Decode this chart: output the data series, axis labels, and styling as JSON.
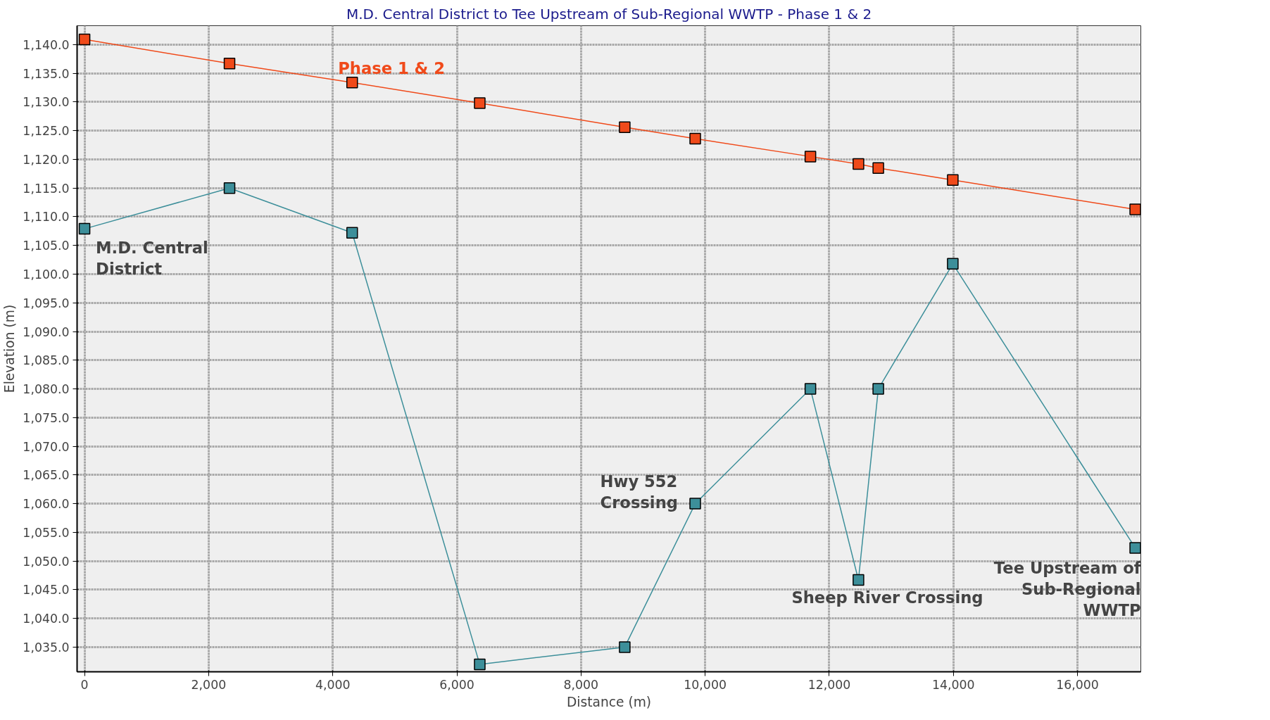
{
  "chart_data": {
    "type": "line",
    "title": "M.D. Central District to Tee Upstream of Sub-Regional WWTP - Phase 1 & 2",
    "xlabel": "Distance (m)",
    "ylabel": "Elevation (m)",
    "x": [
      0,
      2336,
      4312,
      6368,
      8704,
      9840,
      11696,
      12470,
      12790,
      13990,
      16930
    ],
    "series": [
      {
        "name": "Phase 1 & 2",
        "color": "#f04a1a",
        "values": [
          1140.9,
          1136.7,
          1133.4,
          1129.8,
          1125.6,
          1123.6,
          1120.5,
          1119.2,
          1118.5,
          1116.4,
          1111.3
        ]
      },
      {
        "color": "#3d8f9a",
        "values": [
          1107.9,
          1115.0,
          1107.2,
          1032.0,
          1035.0,
          1060.0,
          1080.0,
          1046.7,
          1080.0,
          1101.8,
          1052.3
        ]
      }
    ],
    "xlim": [
      -120,
      17020
    ],
    "ylim": [
      1030.7,
      1143.3
    ],
    "xticks": [
      0,
      {
        "value": 2000,
        "label": "2,000"
      },
      {
        "value": 4000,
        "label": "4,000"
      },
      {
        "value": 6000,
        "label": "6,000"
      },
      {
        "value": 8000,
        "label": "8,000"
      },
      {
        "value": 10000,
        "label": "10,000"
      },
      {
        "value": 12000,
        "label": "12,000"
      },
      {
        "value": 14000,
        "label": "14,000"
      },
      {
        "value": 16000,
        "label": "16,000"
      }
    ],
    "yticks": [
      {
        "value": 1035,
        "label": "1,035.0"
      },
      {
        "value": 1040,
        "label": "1,040.0"
      },
      {
        "value": 1045,
        "label": "1,045.0"
      },
      {
        "value": 1050,
        "label": "1,050.0"
      },
      {
        "value": 1055,
        "label": "1,055.0"
      },
      {
        "value": 1060,
        "label": "1,060.0"
      },
      {
        "value": 1065,
        "label": "1,065.0"
      },
      {
        "value": 1070,
        "label": "1,070.0"
      },
      {
        "value": 1075,
        "label": "1,075.0"
      },
      {
        "value": 1080,
        "label": "1,080.0"
      },
      {
        "value": 1085,
        "label": "1,085.0"
      },
      {
        "value": 1090,
        "label": "1,090.0"
      },
      {
        "value": 1095,
        "label": "1,095.0"
      },
      {
        "value": 1100,
        "label": "1,100.0"
      },
      {
        "value": 1105,
        "label": "1,105.0"
      },
      {
        "value": 1110,
        "label": "1,110.0"
      },
      {
        "value": 1115,
        "label": "1,115.0"
      },
      {
        "value": 1120,
        "label": "1,120.0"
      },
      {
        "value": 1125,
        "label": "1,125.0"
      },
      {
        "value": 1130,
        "label": "1,130.0"
      },
      {
        "value": 1135,
        "label": "1,135.0"
      },
      {
        "value": 1140,
        "label": "1,140.0"
      }
    ],
    "annotations": [
      "M.D. Central\nDistrict",
      "Hwy 552\nCrossing",
      "Sheep River Crossing",
      "Tee Upstream of\nSub-Regional\nWWTP"
    ],
    "grid": true,
    "marker": "square",
    "line_style": "solid"
  }
}
